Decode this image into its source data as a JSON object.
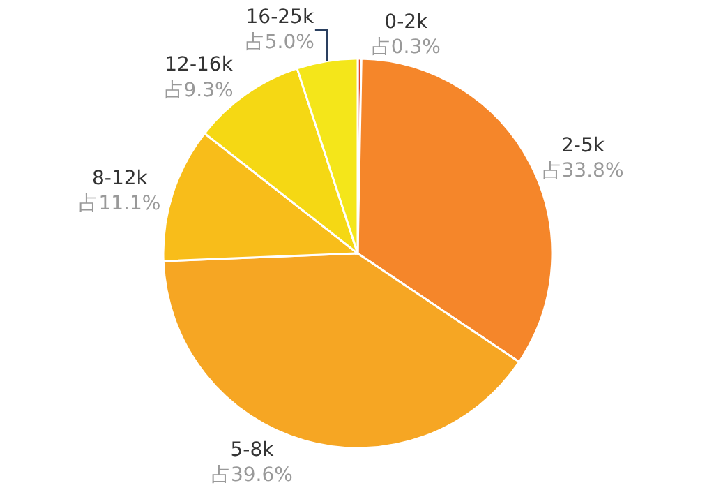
{
  "chart_data": {
    "type": "pie",
    "categories": [
      "0-2k",
      "2-5k",
      "5-8k",
      "8-12k",
      "12-16k",
      "16-25k"
    ],
    "values": [
      0.3,
      33.8,
      39.6,
      11.1,
      9.3,
      5.0
    ],
    "value_labels": [
      "占0.3%",
      "占33.8%",
      "占39.6%",
      "占11.1%",
      "占9.3%",
      "占5.0%"
    ],
    "colors": [
      "#e0452a",
      "#f5862a",
      "#f6a623",
      "#f8bd1a",
      "#f5d814",
      "#f4e61a"
    ],
    "legend": false
  }
}
